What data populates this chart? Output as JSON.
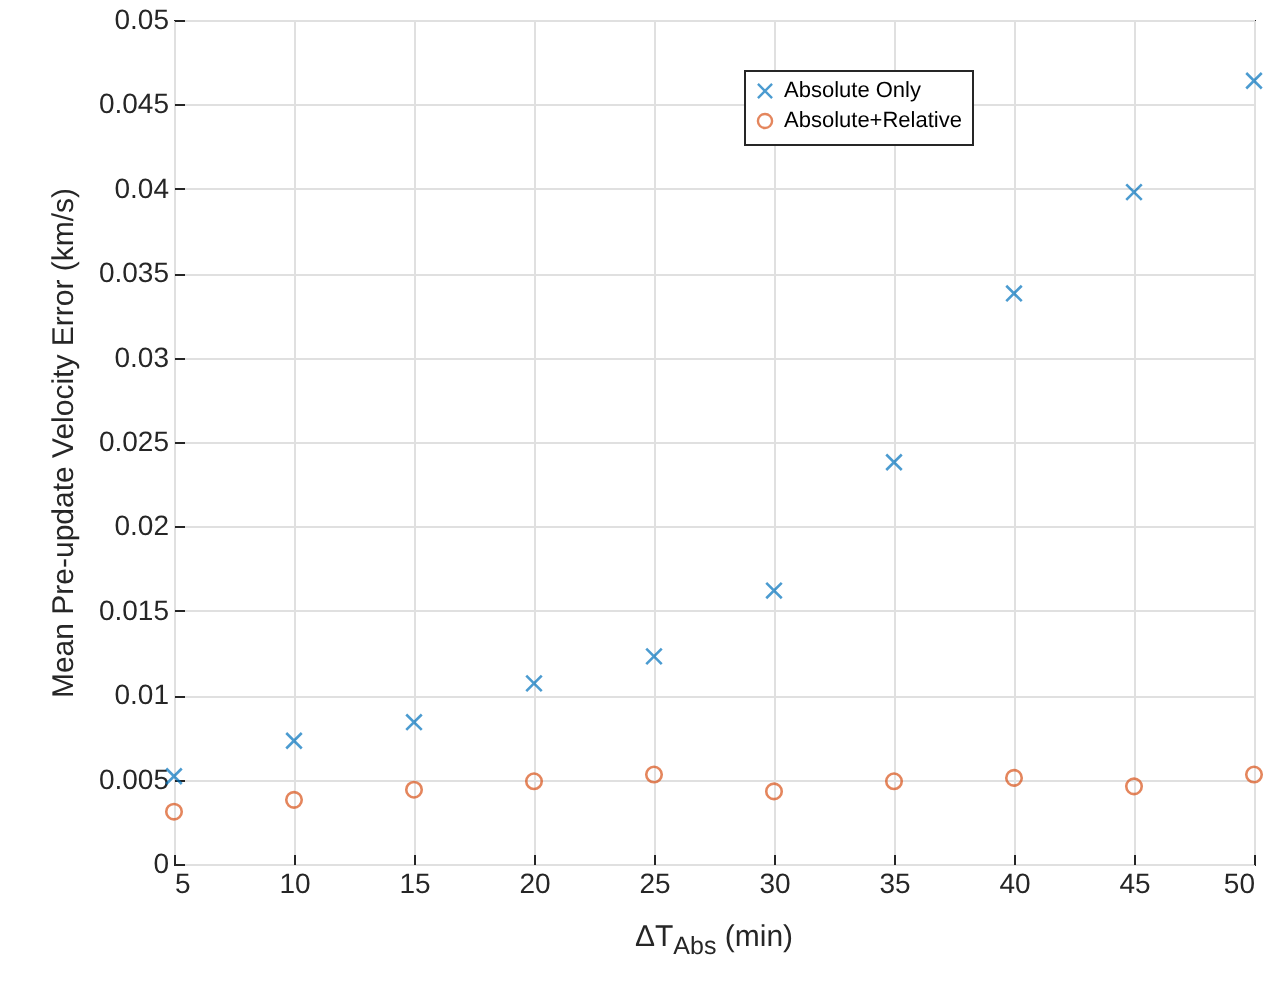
{
  "chart_data": {
    "type": "scatter",
    "xlabel": "ΔT$_{Abs}$ (min)",
    "ylabel": "Mean Pre-update Velocity Error (km/s)",
    "x": [
      5,
      10,
      15,
      20,
      25,
      30,
      35,
      40,
      45,
      50
    ],
    "series": [
      {
        "name": "Absolute Only",
        "color": "#0072bd",
        "marker": "cross",
        "values": [
          0.0052,
          0.0073,
          0.0084,
          0.0107,
          0.0123,
          0.0162,
          0.0238,
          0.0338,
          0.0398,
          0.0464
        ]
      },
      {
        "name": "Absolute+Relative",
        "color": "#d95319",
        "marker": "circle",
        "values": [
          0.0031,
          0.0038,
          0.0044,
          0.0049,
          0.0053,
          0.0043,
          0.0049,
          0.0051,
          0.0046,
          0.0053
        ]
      }
    ],
    "xlim": [
      5,
      50
    ],
    "xticks": [
      5,
      10,
      15,
      20,
      25,
      30,
      35,
      40,
      45,
      50
    ],
    "ylim": [
      0,
      0.05
    ],
    "yticks": [
      0,
      0.005,
      0.01,
      0.015,
      0.02,
      0.025,
      0.03,
      0.035,
      0.04,
      0.045,
      0.05
    ],
    "grid": true,
    "legend": "top right"
  }
}
